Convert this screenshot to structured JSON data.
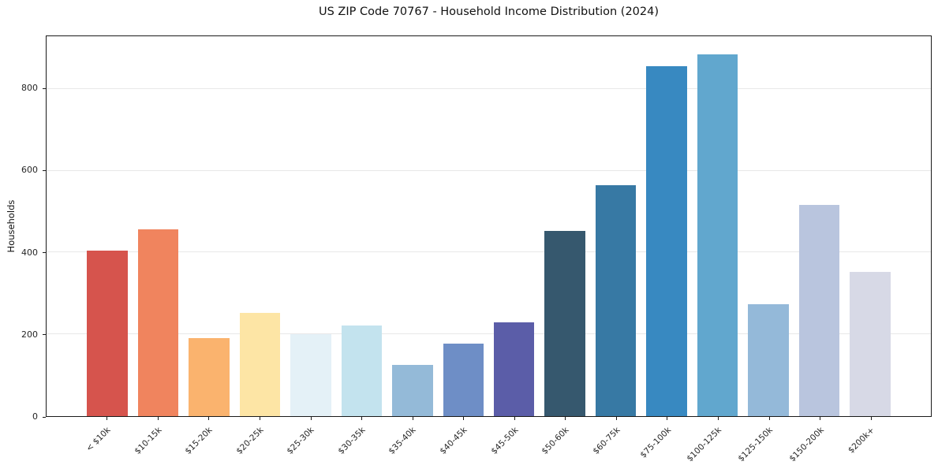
{
  "chart_data": {
    "type": "bar",
    "title": "US ZIP Code 70767 - Household Income Distribution (2024)",
    "xlabel": "",
    "ylabel": "Households",
    "categories": [
      "< $10k",
      "$10-15k",
      "$15-20k",
      "$20-25k",
      "$25-30k",
      "$30-35k",
      "$35-40k",
      "$40-45k",
      "$45-50k",
      "$50-60k",
      "$60-75k",
      "$75-100k",
      "$100-125k",
      "$125-150k",
      "$150-200k",
      "$200k+"
    ],
    "values": [
      405,
      457,
      190,
      253,
      200,
      221,
      126,
      178,
      230,
      453,
      565,
      855,
      885,
      273,
      517,
      353
    ],
    "bar_colors": [
      "#d6544d",
      "#f0845e",
      "#fab36e",
      "#fde5a5",
      "#e4f1f7",
      "#c3e3ee",
      "#94bad8",
      "#6e8ec6",
      "#5b5da8",
      "#36586e",
      "#3779a4",
      "#3889c1",
      "#61a7ce",
      "#94b9d9",
      "#b9c5de",
      "#d7d9e6"
    ],
    "ylim": [
      0,
      929
    ],
    "yticks": [
      0,
      200,
      400,
      600,
      800
    ],
    "grid": "horizontal",
    "grid_color": "#e8e8e8",
    "legend": "none",
    "background": "#ffffff"
  }
}
